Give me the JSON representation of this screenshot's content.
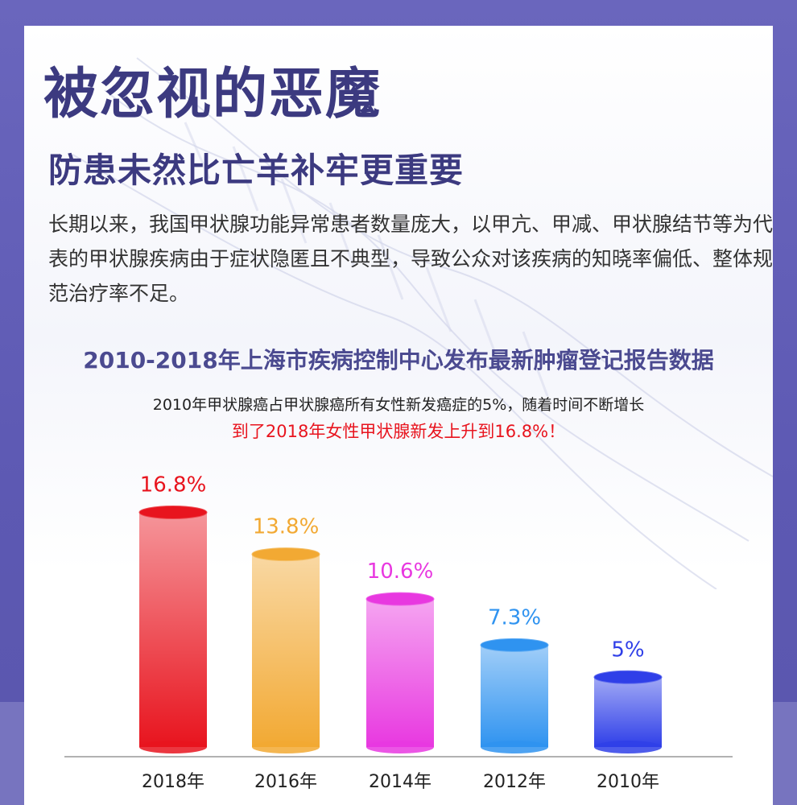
{
  "header": {
    "title": "被忽视的恶魔",
    "subtitle": "防患未然比亡羊补牢更重要"
  },
  "intro": {
    "text": "长期以来，我国甲状腺功能异常患者数量庞大，以甲亢、甲减、甲状腺结节等为代表的甲状腺疾病由于症状隐匿且不典型，导致公众对该疾病的知晓率偏低、整体规范治疗率不足。"
  },
  "section": {
    "heading": "2010-2018年上海市疾病控制中心发布最新肿瘤登记报告数据",
    "description_line1": "2010年甲状腺癌占甲状腺癌所有女性新发癌症的5%，随着时间不断增长",
    "description_line2": "到了2018年女性甲状腺新发上升到16.8%！"
  },
  "colors": {
    "title": "#3c3a80",
    "highlight": "#e8141e"
  },
  "chart_data": {
    "type": "bar",
    "categories": [
      "2018年",
      "2016年",
      "2014年",
      "2012年",
      "2010年"
    ],
    "values": [
      16.8,
      13.8,
      10.6,
      7.3,
      5
    ],
    "value_labels": [
      "16.8%",
      "13.8%",
      "10.6%",
      "7.3%",
      "5%"
    ],
    "unit": "%",
    "ylim": [
      0,
      18
    ],
    "bar_style": "cylinder",
    "colors": [
      "#e8141e",
      "#f2a933",
      "#e838e0",
      "#2f93f0",
      "#2f3fe8"
    ],
    "label_colors": [
      "#e8141e",
      "#f2a933",
      "#e838e0",
      "#2f93f0",
      "#2f3fe8"
    ]
  }
}
